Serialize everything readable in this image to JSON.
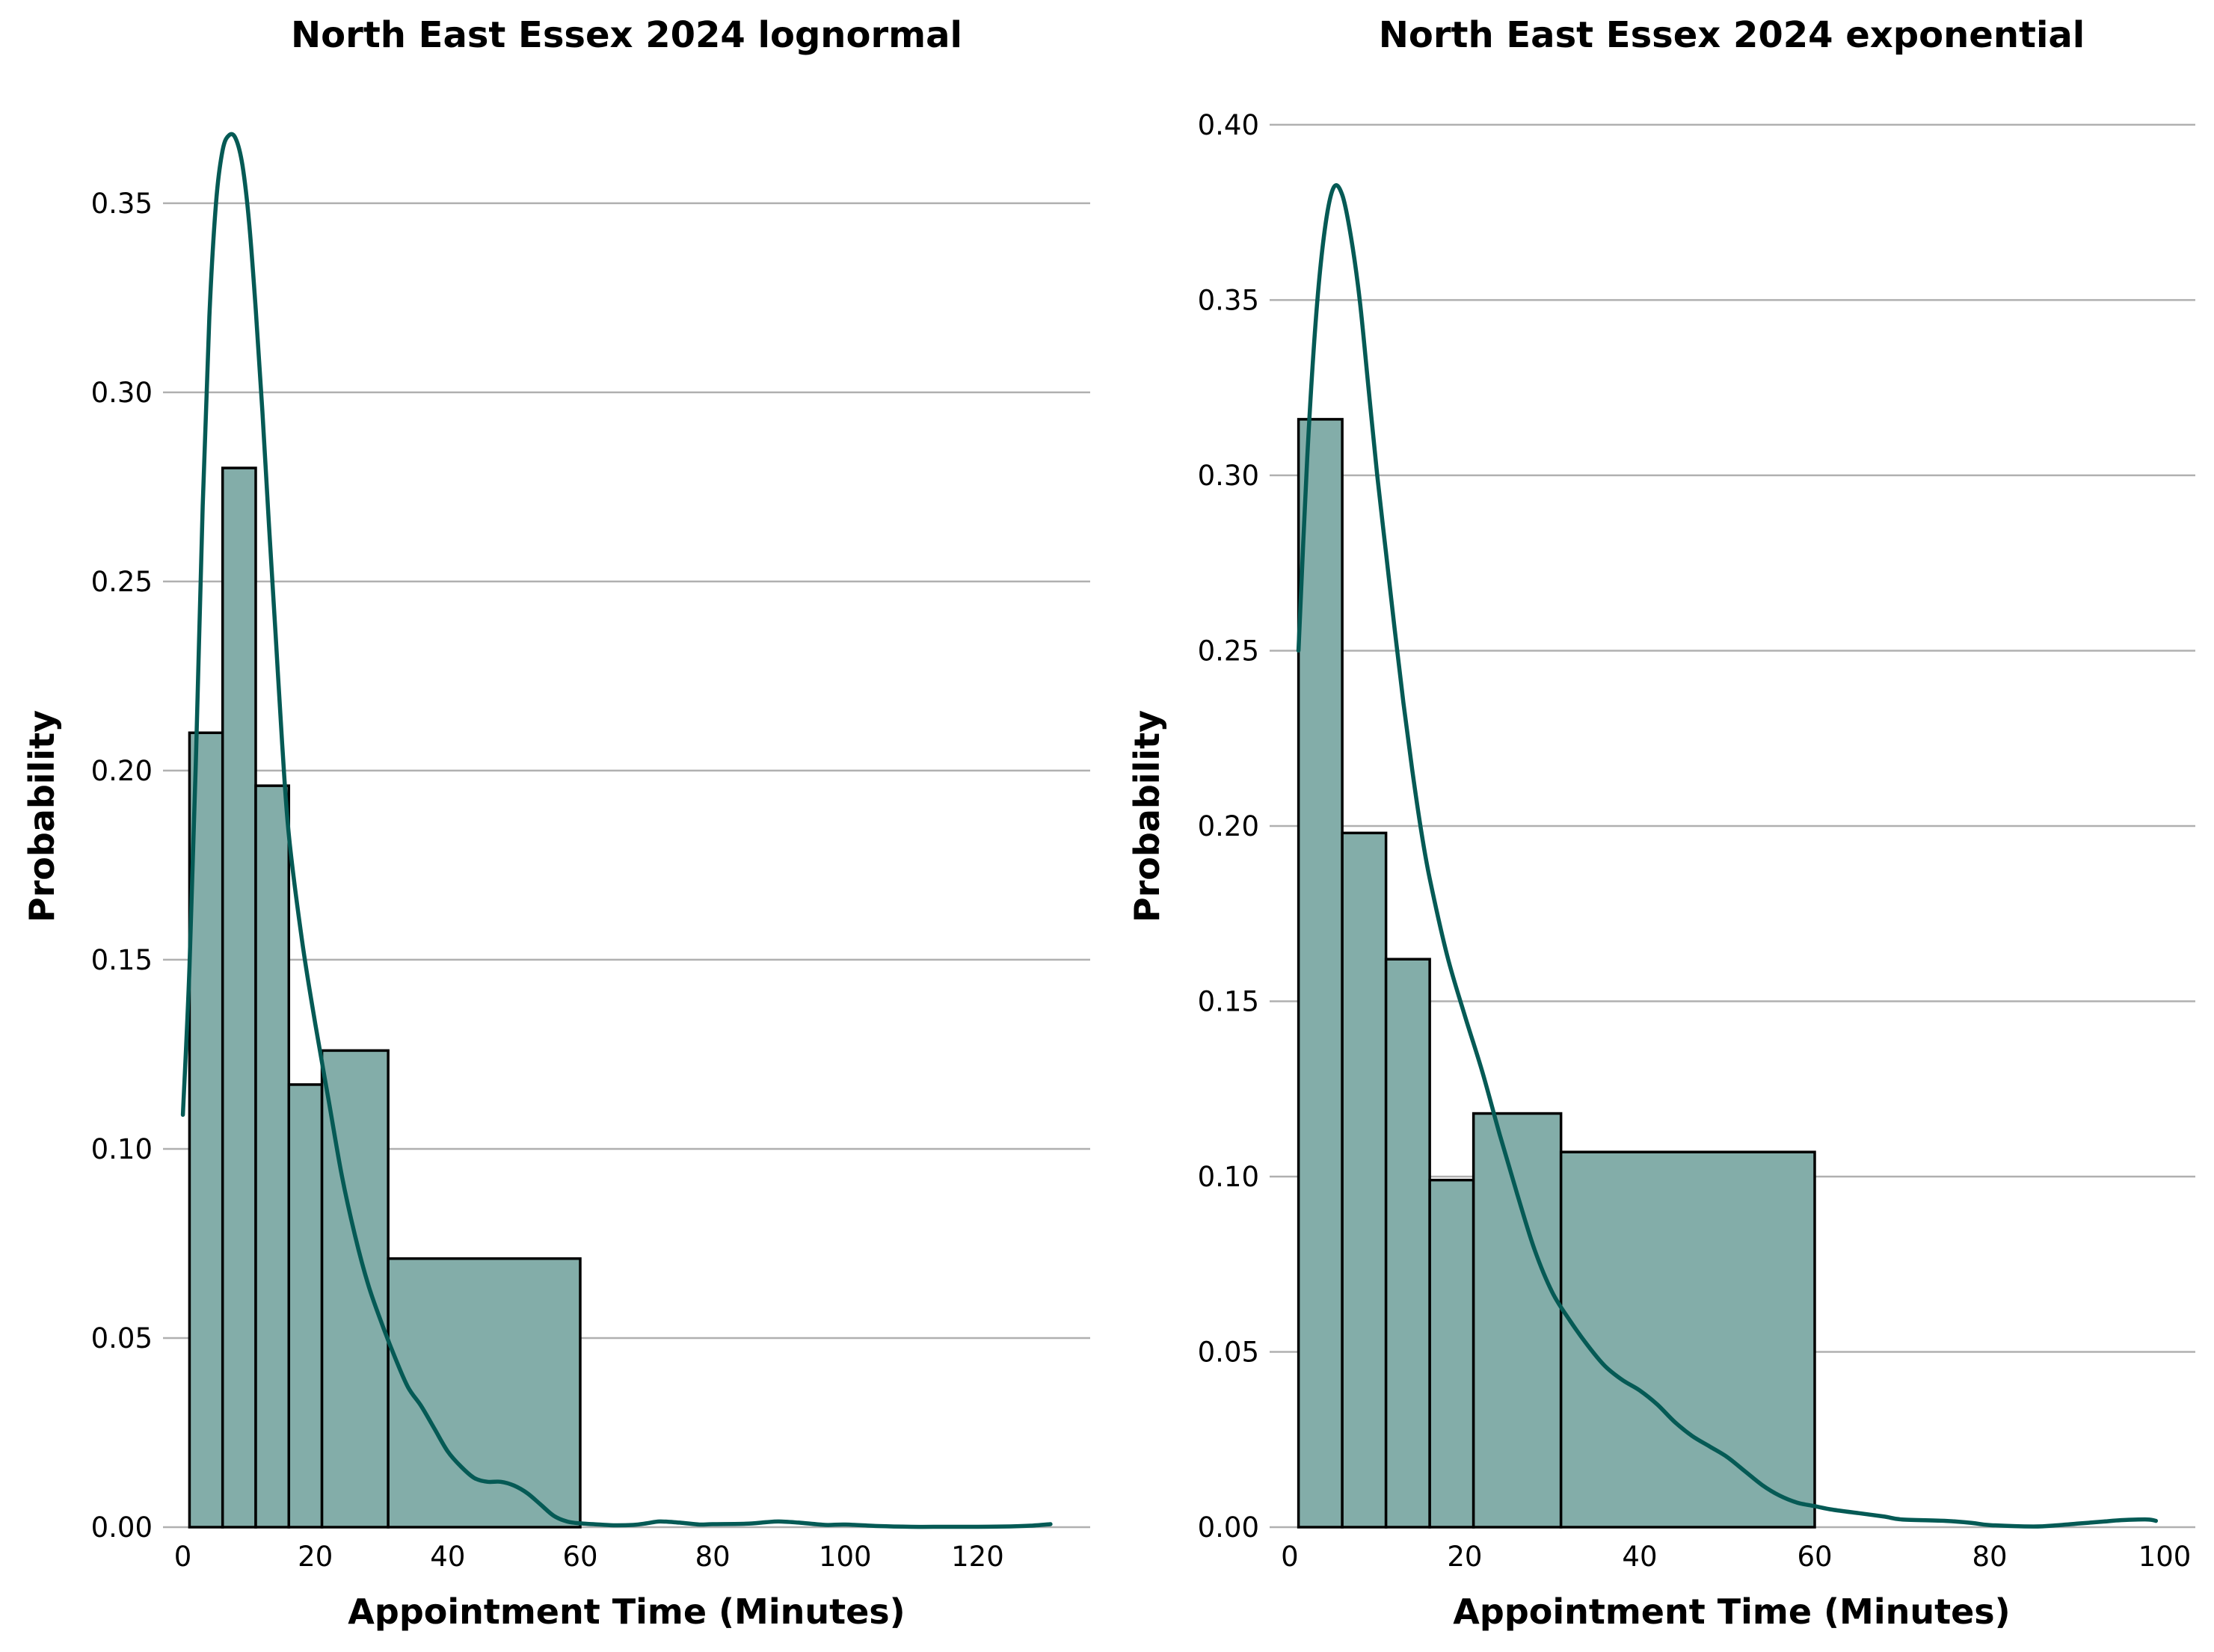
{
  "chart_data": [
    {
      "type": "bar",
      "title": "North East Essex 2024 lognormal",
      "xlabel": "Appointment Time (Minutes)",
      "ylabel": "Probability",
      "xlim": [
        -3,
        137
      ],
      "ylim": [
        0,
        0.38
      ],
      "xticks": [
        0,
        20,
        40,
        60,
        80,
        100,
        120
      ],
      "yticks": [
        0.0,
        0.05,
        0.1,
        0.15,
        0.2,
        0.25,
        0.3,
        0.35
      ],
      "ytick_labels": [
        "0.00",
        "0.05",
        "0.10",
        "0.15",
        "0.20",
        "0.25",
        "0.30",
        "0.35"
      ],
      "grid": "horizontal",
      "colors": {
        "bar_fill": "#83ada9",
        "bar_edge": "#000000",
        "curve": "#055a55",
        "grid": "#b0b0b0"
      },
      "bins": [
        {
          "x0": 1,
          "x1": 6,
          "value": 0.21
        },
        {
          "x0": 6,
          "x1": 11,
          "value": 0.28
        },
        {
          "x0": 11,
          "x1": 16,
          "value": 0.196
        },
        {
          "x0": 16,
          "x1": 21,
          "value": 0.117
        },
        {
          "x0": 21,
          "x1": 31,
          "value": 0.126
        },
        {
          "x0": 31,
          "x1": 60,
          "value": 0.071
        }
      ],
      "curve": {
        "x": [
          0,
          1,
          2,
          3,
          4,
          5,
          6,
          7,
          8,
          9,
          10,
          11,
          12,
          13,
          14,
          15,
          16,
          18,
          20,
          22,
          24,
          26,
          28,
          30,
          32,
          34,
          36,
          38,
          40,
          42,
          44,
          46,
          48,
          50,
          52,
          54,
          56,
          58,
          60,
          62,
          65,
          68,
          70,
          72,
          75,
          78,
          80,
          85,
          88,
          90,
          93,
          97,
          100,
          105,
          110,
          115,
          120,
          125,
          128,
          131
        ],
        "y": [
          0.109,
          0.148,
          0.205,
          0.27,
          0.32,
          0.35,
          0.364,
          0.368,
          0.367,
          0.36,
          0.345,
          0.322,
          0.295,
          0.265,
          0.236,
          0.207,
          0.183,
          0.155,
          0.133,
          0.113,
          0.093,
          0.077,
          0.064,
          0.054,
          0.045,
          0.037,
          0.032,
          0.026,
          0.02,
          0.016,
          0.013,
          0.012,
          0.012,
          0.011,
          0.009,
          0.006,
          0.003,
          0.0015,
          0.001,
          0.0008,
          0.0005,
          0.0006,
          0.001,
          0.0015,
          0.0012,
          0.0007,
          0.0008,
          0.0009,
          0.0013,
          0.0015,
          0.0012,
          0.0006,
          0.0007,
          0.0003,
          0.0001,
          0.0001,
          0.0001,
          0.0002,
          0.0004,
          0.0008
        ]
      }
    },
    {
      "type": "bar",
      "title": "North East Essex 2024 exponential",
      "xlabel": "Appointment Time (Minutes)",
      "ylabel": "Probability",
      "xlim": [
        -2.3,
        103.5
      ],
      "ylim": [
        0,
        0.41
      ],
      "xticks": [
        0,
        20,
        40,
        60,
        80,
        100
      ],
      "yticks": [
        0.0,
        0.05,
        0.1,
        0.15,
        0.2,
        0.25,
        0.3,
        0.35,
        0.4
      ],
      "ytick_labels": [
        "0.00",
        "0.05",
        "0.10",
        "0.15",
        "0.20",
        "0.25",
        "0.30",
        "0.35",
        "0.40"
      ],
      "grid": "horizontal",
      "colors": {
        "bar_fill": "#83ada9",
        "bar_edge": "#000000",
        "curve": "#055a55",
        "grid": "#b0b0b0"
      },
      "bins": [
        {
          "x0": 1,
          "x1": 6,
          "value": 0.316
        },
        {
          "x0": 6,
          "x1": 11,
          "value": 0.198
        },
        {
          "x0": 11,
          "x1": 16,
          "value": 0.162
        },
        {
          "x0": 16,
          "x1": 21,
          "value": 0.099
        },
        {
          "x0": 21,
          "x1": 31,
          "value": 0.118
        },
        {
          "x0": 31,
          "x1": 60,
          "value": 0.107
        }
      ],
      "curve": {
        "x": [
          1,
          2,
          3,
          4,
          5,
          6,
          7,
          8,
          9,
          10,
          11,
          12,
          13,
          14,
          15,
          16,
          18,
          20,
          22,
          24,
          26,
          28,
          30,
          32,
          34,
          36,
          38,
          40,
          42,
          44,
          46,
          48,
          50,
          52,
          54,
          56,
          58,
          60,
          62,
          65,
          68,
          70,
          75,
          78,
          80,
          85,
          88,
          90,
          93,
          95,
          98,
          99
        ],
        "y": [
          0.25,
          0.305,
          0.345,
          0.37,
          0.382,
          0.38,
          0.368,
          0.35,
          0.325,
          0.3,
          0.278,
          0.256,
          0.235,
          0.216,
          0.199,
          0.185,
          0.163,
          0.146,
          0.13,
          0.112,
          0.095,
          0.079,
          0.067,
          0.059,
          0.052,
          0.046,
          0.042,
          0.039,
          0.035,
          0.03,
          0.026,
          0.023,
          0.02,
          0.016,
          0.012,
          0.009,
          0.007,
          0.006,
          0.005,
          0.004,
          0.003,
          0.0022,
          0.0018,
          0.0012,
          0.0006,
          0.0002,
          0.0006,
          0.001,
          0.0016,
          0.002,
          0.0022,
          0.0018
        ]
      }
    }
  ]
}
